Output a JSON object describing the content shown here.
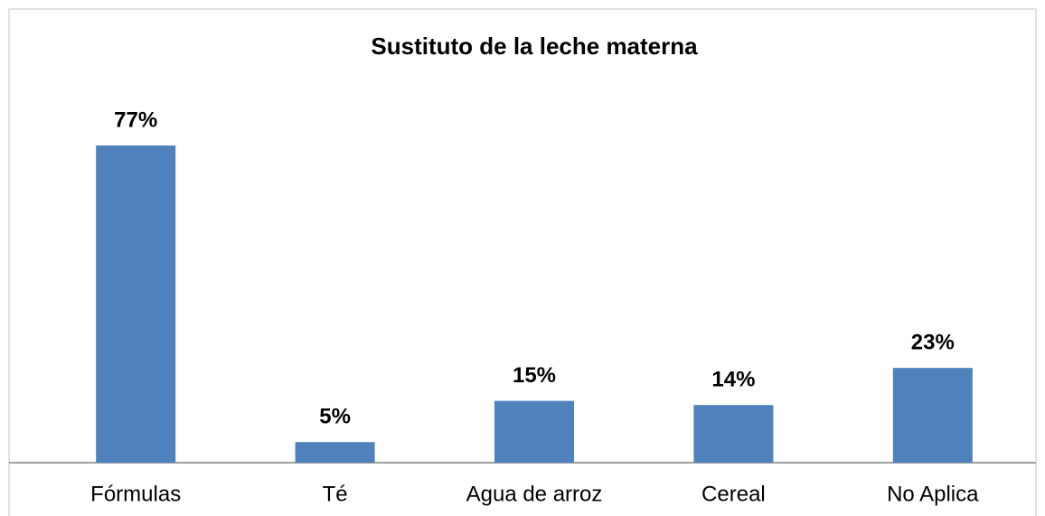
{
  "chart_data": {
    "type": "bar",
    "title": "Sustituto de la leche materna",
    "categories": [
      "Fórmulas",
      "Té",
      "Agua de arroz",
      "Cereal",
      "No Aplica"
    ],
    "values": [
      77,
      5,
      15,
      14,
      23
    ],
    "value_labels": [
      "77%",
      "5%",
      "15%",
      "14%",
      "23%"
    ],
    "color": "#4f81bd",
    "grid": false
  }
}
